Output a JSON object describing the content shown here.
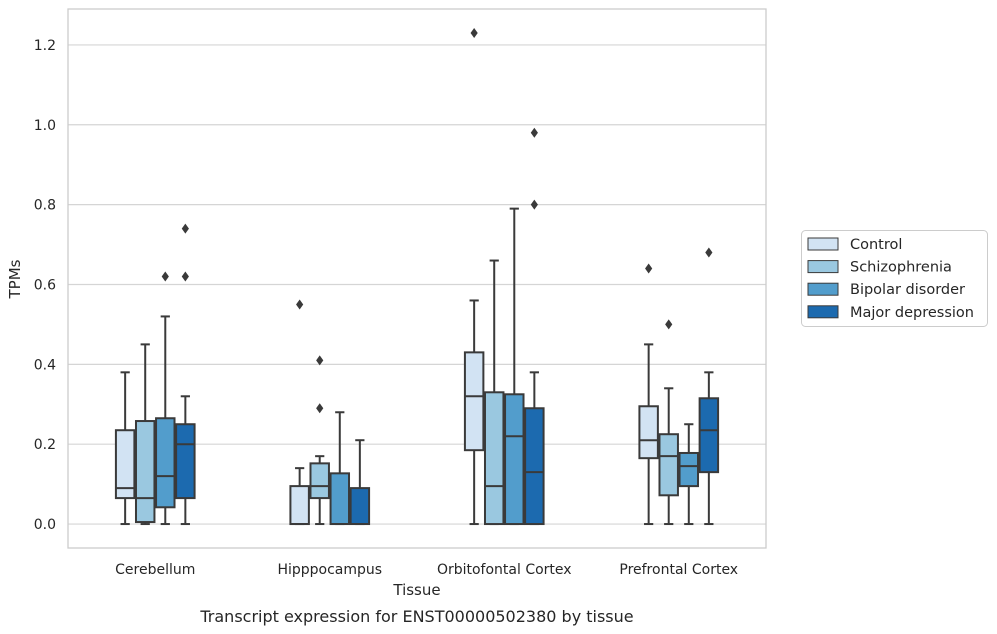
{
  "chart_data": {
    "type": "box",
    "xlabel": "Tissue",
    "ylabel": "TPMs",
    "caption": "Transcript expression for ENST00000502380 by tissue",
    "ylim": [
      -0.06,
      1.29
    ],
    "yticks": [
      0.0,
      0.2,
      0.4,
      0.6,
      0.8,
      1.0,
      1.2
    ],
    "ytick_labels": [
      "0.0",
      "0.2",
      "0.4",
      "0.6",
      "0.8",
      "1.0",
      "1.2"
    ],
    "grid": "horizontal",
    "legend_position": "right-outside",
    "categories": [
      "Cerebellum",
      "Hipppocampus",
      "Orbitofontal Cortex",
      "Prefrontal Cortex"
    ],
    "series": [
      {
        "name": "Control",
        "color": "#d2e3f3",
        "boxes": [
          {
            "whislo": 0.0,
            "q1": 0.065,
            "med": 0.09,
            "q3": 0.235,
            "whishi": 0.38,
            "fliers": []
          },
          {
            "whislo": 0.0,
            "q1": 0.0,
            "med": 0.0,
            "q3": 0.095,
            "whishi": 0.14,
            "fliers": [
              0.55
            ]
          },
          {
            "whislo": 0.0,
            "q1": 0.185,
            "med": 0.32,
            "q3": 0.43,
            "whishi": 0.56,
            "fliers": [
              1.23
            ]
          },
          {
            "whislo": 0.0,
            "q1": 0.165,
            "med": 0.21,
            "q3": 0.295,
            "whishi": 0.45,
            "fliers": [
              0.64
            ]
          }
        ]
      },
      {
        "name": "Schizophrenia",
        "color": "#9ac8e0",
        "boxes": [
          {
            "whislo": 0.0,
            "q1": 0.005,
            "med": 0.065,
            "q3": 0.258,
            "whishi": 0.45,
            "fliers": []
          },
          {
            "whislo": 0.0,
            "q1": 0.065,
            "med": 0.095,
            "q3": 0.152,
            "whishi": 0.17,
            "fliers": [
              0.41,
              0.29
            ]
          },
          {
            "whislo": 0.0,
            "q1": 0.0,
            "med": 0.095,
            "q3": 0.33,
            "whishi": 0.66,
            "fliers": []
          },
          {
            "whislo": 0.0,
            "q1": 0.072,
            "med": 0.17,
            "q3": 0.225,
            "whishi": 0.34,
            "fliers": [
              0.5
            ]
          }
        ]
      },
      {
        "name": "Bipolar disorder",
        "color": "#529dcc",
        "boxes": [
          {
            "whislo": 0.0,
            "q1": 0.042,
            "med": 0.12,
            "q3": 0.265,
            "whishi": 0.52,
            "fliers": [
              0.62
            ]
          },
          {
            "whislo": 0.0,
            "q1": 0.0,
            "med": 0.0,
            "q3": 0.127,
            "whishi": 0.28,
            "fliers": []
          },
          {
            "whislo": 0.0,
            "q1": 0.0,
            "med": 0.22,
            "q3": 0.325,
            "whishi": 0.79,
            "fliers": []
          },
          {
            "whislo": 0.0,
            "q1": 0.095,
            "med": 0.145,
            "q3": 0.178,
            "whishi": 0.25,
            "fliers": []
          }
        ]
      },
      {
        "name": "Major depression",
        "color": "#1c6aaf",
        "boxes": [
          {
            "whislo": 0.0,
            "q1": 0.065,
            "med": 0.2,
            "q3": 0.25,
            "whishi": 0.32,
            "fliers": [
              0.74,
              0.62
            ]
          },
          {
            "whislo": 0.0,
            "q1": 0.0,
            "med": 0.0,
            "q3": 0.09,
            "whishi": 0.21,
            "fliers": []
          },
          {
            "whislo": 0.0,
            "q1": 0.0,
            "med": 0.13,
            "q3": 0.29,
            "whishi": 0.38,
            "fliers": [
              0.98,
              0.8
            ]
          },
          {
            "whislo": 0.0,
            "q1": 0.13,
            "med": 0.235,
            "q3": 0.315,
            "whishi": 0.38,
            "fliers": [
              0.68
            ]
          }
        ]
      }
    ]
  }
}
